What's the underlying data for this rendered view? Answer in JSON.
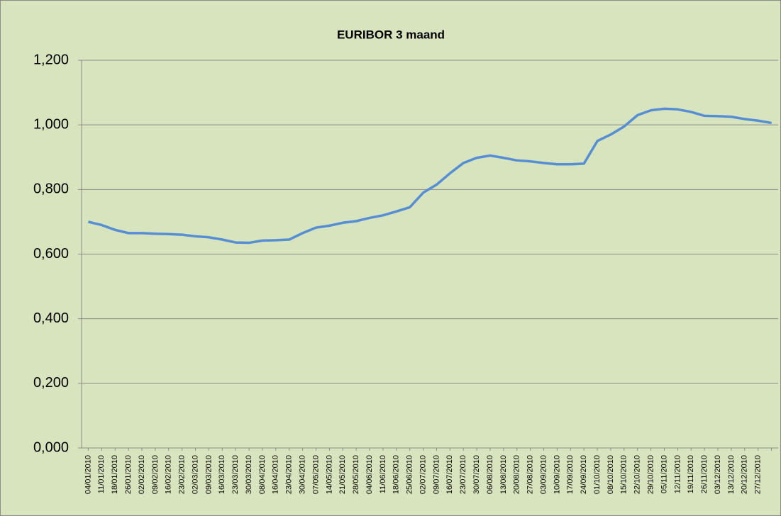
{
  "chart_data": {
    "type": "line",
    "title": "EURIBOR 3 maand",
    "categories": [
      "04/01/2010",
      "11/01/2010",
      "18/01/2010",
      "26/01/2010",
      "02/02/2010",
      "09/02/2010",
      "16/02/2010",
      "23/02/2010",
      "02/03/2010",
      "09/03/2010",
      "16/03/2010",
      "23/03/2010",
      "30/03/2010",
      "08/04/2010",
      "16/04/2010",
      "23/04/2010",
      "30/04/2010",
      "07/05/2010",
      "14/05/2010",
      "21/05/2010",
      "28/05/2010",
      "04/06/2010",
      "11/06/2010",
      "18/06/2010",
      "25/06/2010",
      "02/07/2010",
      "09/07/2010",
      "16/07/2010",
      "23/07/2010",
      "30/07/2010",
      "06/08/2010",
      "13/08/2010",
      "20/08/2010",
      "27/08/2010",
      "03/09/2010",
      "10/09/2010",
      "17/09/2010",
      "24/09/2010",
      "01/10/2010",
      "08/10/2010",
      "15/10/2010",
      "22/10/2010",
      "29/10/2010",
      "05/11/2010",
      "12/11/2010",
      "19/11/2010",
      "26/11/2010",
      "03/12/2010",
      "13/12/2010",
      "20/12/2010",
      "27/12/2010",
      null
    ],
    "values": [
      0.7,
      0.69,
      0.675,
      0.665,
      0.665,
      0.663,
      0.662,
      0.66,
      0.655,
      0.652,
      0.645,
      0.636,
      0.635,
      0.642,
      0.643,
      0.645,
      0.665,
      0.682,
      0.688,
      0.697,
      0.702,
      0.712,
      0.72,
      0.732,
      0.745,
      0.79,
      0.815,
      0.85,
      0.882,
      0.898,
      0.905,
      0.898,
      0.89,
      0.887,
      0.882,
      0.878,
      0.878,
      0.88,
      0.95,
      0.97,
      0.995,
      1.03,
      1.045,
      1.05,
      1.048,
      1.04,
      1.028,
      1.027,
      1.025,
      1.018,
      1.013,
      1.006
    ],
    "color": "#558ed5",
    "ylim": [
      0,
      1.2
    ],
    "yticks": [
      {
        "value": 0,
        "label": "0,000"
      },
      {
        "value": 0.2,
        "label": "0,200"
      },
      {
        "value": 0.4,
        "label": "0,400"
      },
      {
        "value": 0.6,
        "label": "0,600"
      },
      {
        "value": 0.8,
        "label": "0,800"
      },
      {
        "value": 1.0,
        "label": "1,000"
      },
      {
        "value": 1.2,
        "label": "1,200"
      }
    ],
    "grid": true
  }
}
